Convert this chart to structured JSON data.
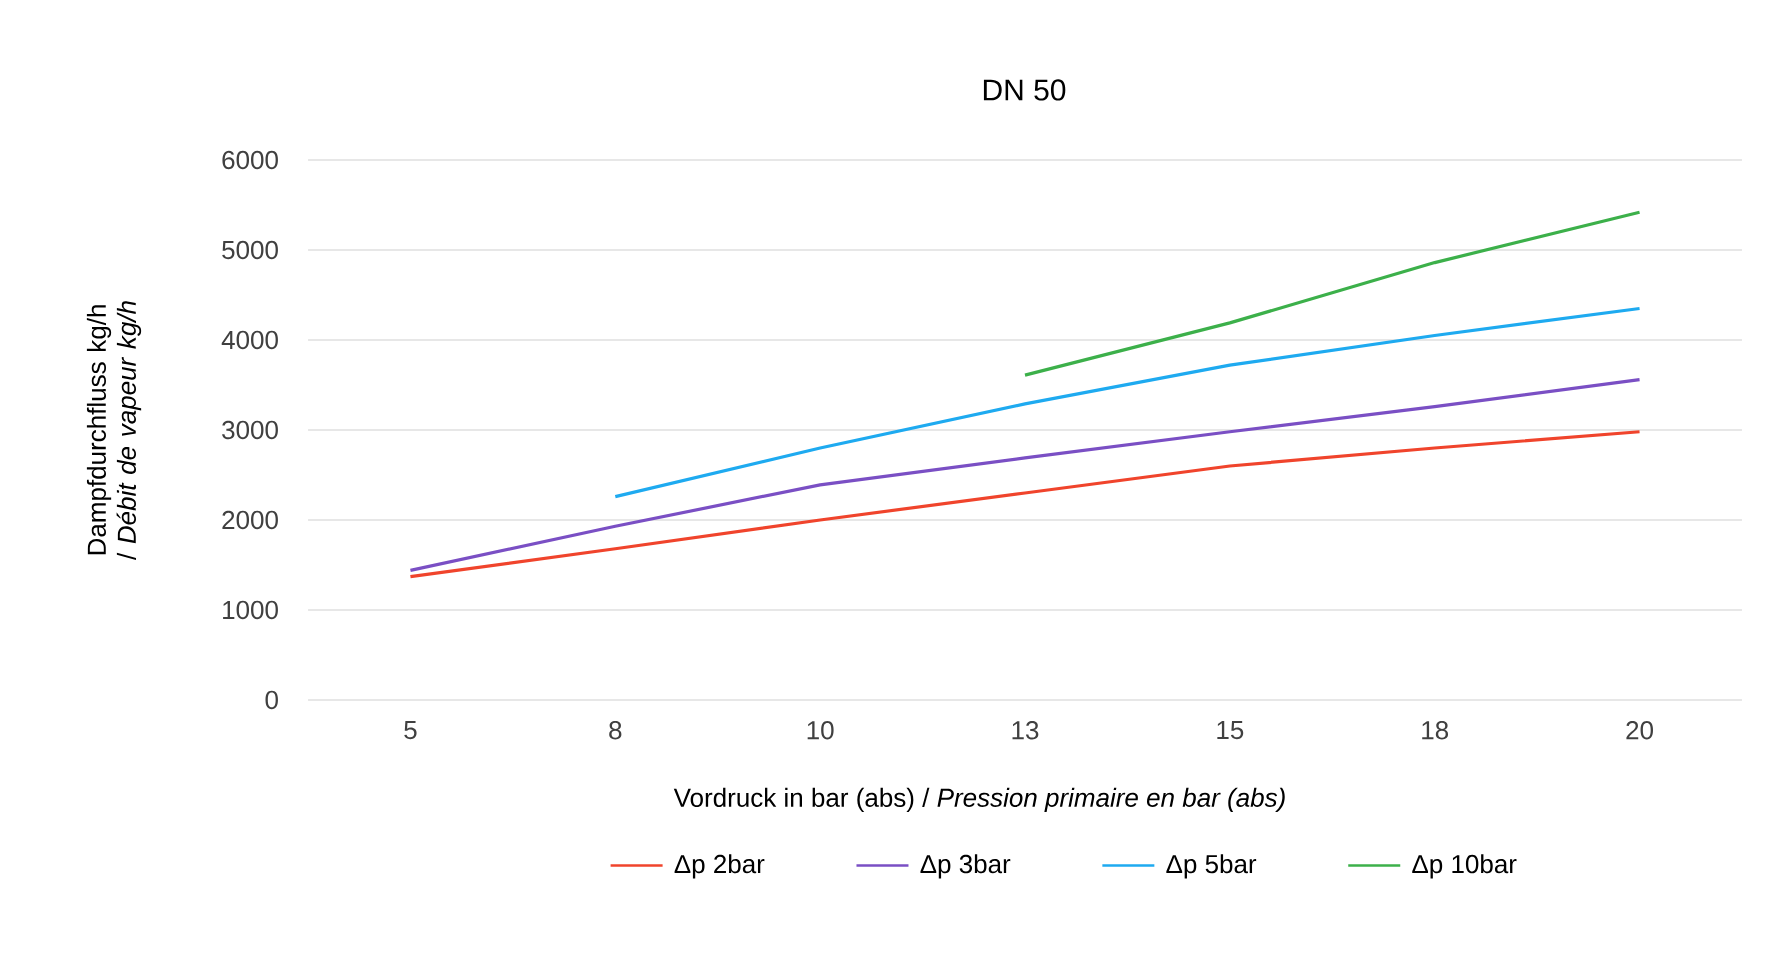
{
  "chart_data": {
    "type": "line",
    "title": "DN 50",
    "xlabel": "Vordruck in bar (abs) / *Pression primaire en bar (abs)*",
    "ylabel": "Dampfdurchfluss kg/h / *Débit de vapeur kg/h*",
    "categories": [
      "5",
      "8",
      "10",
      "13",
      "15",
      "18",
      "20"
    ],
    "series": [
      {
        "name": "Δp 2bar",
        "color": "#f0442c",
        "values": [
          1370,
          1680,
          2000,
          2300,
          2600,
          2800,
          2980
        ]
      },
      {
        "name": "Δp 3bar",
        "color": "#7a4fc4",
        "values": [
          1440,
          1930,
          2390,
          2690,
          2980,
          3260,
          3560
        ]
      },
      {
        "name": "Δp 5bar",
        "color": "#1eaaf0",
        "values": [
          null,
          2260,
          2800,
          3290,
          3720,
          4050,
          4350
        ]
      },
      {
        "name": "Δp 10bar",
        "color": "#3cb04a",
        "values": [
          null,
          null,
          null,
          3610,
          4190,
          4860,
          5420
        ]
      }
    ],
    "ylim": [
      0,
      6000
    ],
    "yticks": [
      0,
      1000,
      2000,
      3000,
      4000,
      5000,
      6000
    ],
    "grid": "y",
    "legend": "bottom",
    "marker": "none",
    "line_style": "solid"
  }
}
